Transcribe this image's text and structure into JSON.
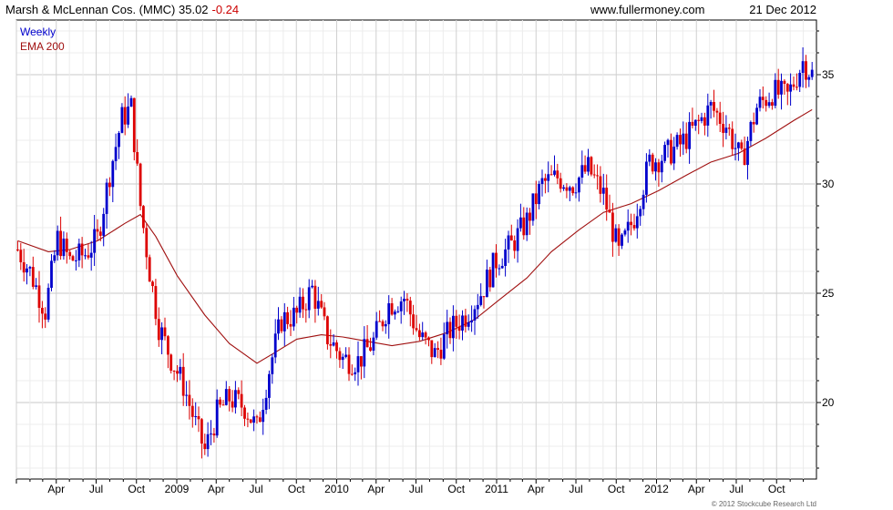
{
  "header": {
    "title": "Marsh & McLennan Cos. (MMC) 35.02",
    "change": "-0.24",
    "source": "www.fullermoney.com",
    "date": "21 Dec 2012"
  },
  "copyright": "© 2012 Stockcube Research Ltd",
  "chart_data": {
    "type": "line",
    "title": "Marsh & McLennan Cos. (MMC) 35.02",
    "legend": [
      "Weekly",
      "EMA 200"
    ],
    "legend_placement": "top-left",
    "grid": true,
    "yaxis_side": "right",
    "ylim": [
      16.5,
      37.5
    ],
    "y_ticks": [
      20,
      25,
      30,
      35
    ],
    "x_ticks": [
      "Apr",
      "Jul",
      "Oct",
      "2009",
      "Apr",
      "Jul",
      "Oct",
      "2010",
      "Apr",
      "Jul",
      "Oct",
      "2011",
      "Apr",
      "Jul",
      "Oct",
      "2012",
      "Apr",
      "Jul",
      "Oct"
    ],
    "x_tick_dates": [
      "2008-04-01",
      "2008-07-01",
      "2008-10-01",
      "2009-01-01",
      "2009-04-01",
      "2009-07-01",
      "2009-10-01",
      "2010-01-01",
      "2010-04-01",
      "2010-07-01",
      "2010-10-01",
      "2011-01-01",
      "2011-04-01",
      "2011-07-01",
      "2011-10-01",
      "2012-01-01",
      "2012-04-01",
      "2012-07-01",
      "2012-10-01"
    ],
    "x_range": [
      "2008-01-01",
      "2012-12-31"
    ],
    "colors": {
      "up": "#0000cc",
      "down": "#dd0000",
      "ema": "#a01010",
      "grid": "#cccccc",
      "frame": "#000000"
    },
    "series": [
      {
        "name": "Weekly",
        "kind": "close",
        "dates": [
          "2008-01-04",
          "2008-02-01",
          "2008-03-07",
          "2008-04-04",
          "2008-05-02",
          "2008-06-06",
          "2008-07-04",
          "2008-08-01",
          "2008-08-29",
          "2008-09-19",
          "2008-10-10",
          "2008-10-31",
          "2008-11-21",
          "2008-12-19",
          "2009-01-16",
          "2009-02-13",
          "2009-03-06",
          "2009-04-03",
          "2009-05-01",
          "2009-06-05",
          "2009-07-03",
          "2009-07-31",
          "2009-08-28",
          "2009-10-02",
          "2009-11-06",
          "2009-12-11",
          "2010-01-15",
          "2010-02-19",
          "2010-03-26",
          "2010-04-30",
          "2010-06-04",
          "2010-07-09",
          "2010-08-13",
          "2010-09-17",
          "2010-10-22",
          "2010-11-26",
          "2010-12-31",
          "2011-02-04",
          "2011-03-11",
          "2011-04-15",
          "2011-05-20",
          "2011-06-24",
          "2011-07-29",
          "2011-09-02",
          "2011-10-07",
          "2011-11-11",
          "2011-12-16",
          "2012-01-20",
          "2012-02-24",
          "2012-03-30",
          "2012-05-04",
          "2012-06-08",
          "2012-07-13",
          "2012-08-17",
          "2012-09-21",
          "2012-10-26",
          "2012-11-30",
          "2012-12-21"
        ],
        "values": [
          27.0,
          26.0,
          24.2,
          27.5,
          26.5,
          26.8,
          27.5,
          30.5,
          33.0,
          33.5,
          29.0,
          26.0,
          23.5,
          22.0,
          20.8,
          19.0,
          17.8,
          19.5,
          20.2,
          19.8,
          18.8,
          21.5,
          23.8,
          24.0,
          25.2,
          23.0,
          22.0,
          21.9,
          22.8,
          24.5,
          24.8,
          23.0,
          22.2,
          23.3,
          24.0,
          25.0,
          26.5,
          27.2,
          28.3,
          30.0,
          30.3,
          30.0,
          30.7,
          29.5,
          26.8,
          28.5,
          31.0,
          31.3,
          31.8,
          32.6,
          33.5,
          32.7,
          31.0,
          33.5,
          34.2,
          34.0,
          35.6,
          35.02
        ]
      },
      {
        "name": "EMA 200",
        "kind": "ema",
        "dates": [
          "2008-01-04",
          "2008-03-14",
          "2008-05-02",
          "2008-07-04",
          "2008-09-05",
          "2008-10-10",
          "2008-11-14",
          "2009-01-02",
          "2009-03-06",
          "2009-05-01",
          "2009-07-03",
          "2009-08-14",
          "2009-10-02",
          "2009-11-27",
          "2010-01-15",
          "2010-03-12",
          "2010-05-07",
          "2010-07-09",
          "2010-09-10",
          "2010-11-12",
          "2011-01-07",
          "2011-03-11",
          "2011-05-06",
          "2011-07-08",
          "2011-09-02",
          "2011-11-04",
          "2012-01-06",
          "2012-03-09",
          "2012-05-04",
          "2012-07-06",
          "2012-09-07",
          "2012-11-09",
          "2012-12-21"
        ],
        "values": [
          27.4,
          26.9,
          27.0,
          27.4,
          28.2,
          28.6,
          27.6,
          25.8,
          24.0,
          22.7,
          21.8,
          22.3,
          22.9,
          23.1,
          23.0,
          22.8,
          22.6,
          22.8,
          23.2,
          23.8,
          24.7,
          25.7,
          26.9,
          27.9,
          28.7,
          29.1,
          29.7,
          30.4,
          31.0,
          31.4,
          32.1,
          32.9,
          33.4
        ]
      }
    ]
  }
}
